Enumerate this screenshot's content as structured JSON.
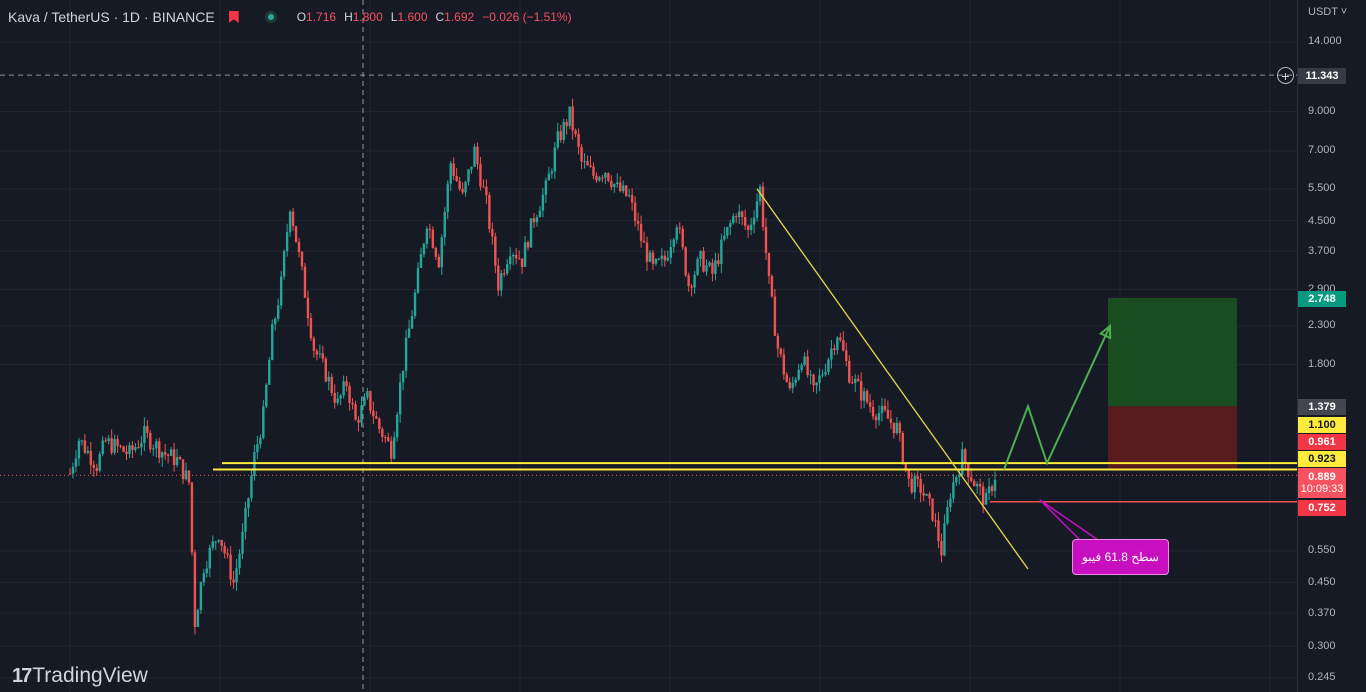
{
  "header": {
    "symbol": "Kava / TetherUS · 1D · BINANCE",
    "ohlc": [
      {
        "key": "O",
        "value": "1.716"
      },
      {
        "key": "H",
        "value": "1.800"
      },
      {
        "key": "L",
        "value": "1.600"
      },
      {
        "key": "C",
        "value": "1.692"
      }
    ],
    "change": "−0.026 (−1.51%)"
  },
  "axis": {
    "currency": "USDT",
    "ticks": [
      "14.000",
      "9.000",
      "7.000",
      "5.500",
      "4.500",
      "3.700",
      "2.900",
      "2.300",
      "1.800",
      "0.750",
      "0.550",
      "0.450",
      "0.370",
      "0.300",
      "0.245"
    ]
  },
  "tags": {
    "crosshair": "11.343",
    "target": "2.748",
    "entry_top": "1.379",
    "level_1100": "1.100",
    "level_0961": "0.961",
    "level_0923": "0.923",
    "price": "0.889",
    "countdown": "10:09:33",
    "stop": "0.752"
  },
  "annotation": "سطح 61.8 فیبو",
  "branding": {
    "logo_mark": "17",
    "logo_text": "TradingView"
  },
  "colors": {
    "background": "#161a25",
    "up": "#26a69a",
    "down": "#ef5350",
    "horizontal_lines": "#ffeb3b",
    "trendline": "#e8d84c",
    "projection": "#4caf50",
    "target_zone": "#1b5e20",
    "stop_zone": "#6d1b1b",
    "annotation": "#c70fc0"
  },
  "chart_data": {
    "type": "candlestick",
    "y_scale": "log",
    "ylim": [
      0.23,
      16.5
    ],
    "horizontal_levels": [
      0.961,
      0.923
    ],
    "stop_line": 0.752,
    "current_price": 0.889,
    "trendline": {
      "from": 5.5,
      "to": 0.49
    },
    "projection_path": [
      0.923,
      1.379,
      0.961,
      2.3
    ],
    "position": {
      "target": 2.748,
      "entry": 1.379,
      "stop": 0.923
    },
    "price_path": [
      [
        0,
        0.9
      ],
      [
        3,
        1.12
      ],
      [
        9,
        0.95
      ],
      [
        12,
        1.1
      ],
      [
        20,
        1.02
      ],
      [
        25,
        1.15
      ],
      [
        32,
        1.02
      ],
      [
        36,
        0.98
      ],
      [
        40,
        0.85
      ],
      [
        42,
        0.35
      ],
      [
        45,
        0.5
      ],
      [
        50,
        0.62
      ],
      [
        55,
        0.45
      ],
      [
        58,
        0.6
      ],
      [
        62,
        1.0
      ],
      [
        65,
        1.3
      ],
      [
        68,
        2.2
      ],
      [
        71,
        3.0
      ],
      [
        74,
        5.0
      ],
      [
        78,
        3.2
      ],
      [
        82,
        2.0
      ],
      [
        86,
        1.7
      ],
      [
        90,
        1.4
      ],
      [
        93,
        1.6
      ],
      [
        96,
        1.25
      ],
      [
        100,
        1.45
      ],
      [
        104,
        1.2
      ],
      [
        108,
        1.05
      ],
      [
        112,
        1.8
      ],
      [
        116,
        2.8
      ],
      [
        120,
        4.5
      ],
      [
        124,
        3.5
      ],
      [
        128,
        6.5
      ],
      [
        132,
        5.2
      ],
      [
        136,
        7.0
      ],
      [
        140,
        5.0
      ],
      [
        144,
        3.0
      ],
      [
        148,
        3.8
      ],
      [
        152,
        3.5
      ],
      [
        156,
        4.6
      ],
      [
        160,
        5.5
      ],
      [
        164,
        7.5
      ],
      [
        168,
        8.8
      ],
      [
        172,
        6.5
      ],
      [
        176,
        6.0
      ],
      [
        180,
        6.2
      ],
      [
        184,
        5.5
      ],
      [
        188,
        5.2
      ],
      [
        192,
        4.0
      ],
      [
        196,
        3.3
      ],
      [
        200,
        3.5
      ],
      [
        204,
        4.5
      ],
      [
        208,
        3.0
      ],
      [
        212,
        3.5
      ],
      [
        216,
        3.2
      ],
      [
        220,
        4.0
      ],
      [
        224,
        4.8
      ],
      [
        228,
        4.2
      ],
      [
        232,
        5.5
      ],
      [
        235,
        3.0
      ],
      [
        238,
        2.0
      ],
      [
        242,
        1.5
      ],
      [
        246,
        1.9
      ],
      [
        250,
        1.5
      ],
      [
        254,
        1.8
      ],
      [
        258,
        2.2
      ],
      [
        262,
        1.7
      ],
      [
        266,
        1.5
      ],
      [
        270,
        1.35
      ],
      [
        274,
        1.3
      ],
      [
        278,
        1.2
      ],
      [
        282,
        0.85
      ],
      [
        286,
        0.82
      ],
      [
        290,
        0.7
      ],
      [
        293,
        0.55
      ],
      [
        296,
        0.8
      ],
      [
        300,
        1.0
      ],
      [
        304,
        0.85
      ],
      [
        308,
        0.75
      ],
      [
        311,
        0.889
      ]
    ]
  }
}
